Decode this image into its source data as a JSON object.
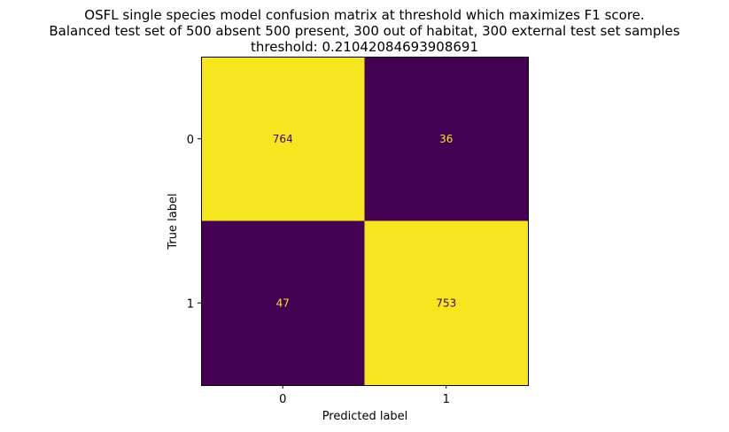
{
  "title_lines": [
    "OSFL single species model confusion matrix at threshold which maximizes F1 score.",
    "Balanced test set of 500 absent 500 present, 300 out of habitat, 300 external test set samples",
    "threshold: 0.21042084693908691"
  ],
  "chart_data": {
    "type": "heatmap",
    "title": "OSFL single species model confusion matrix at threshold which maximizes F1 score.\nBalanced test set of 500 absent 500 present, 300 out of habitat, 300 external test set samples\nthreshold: 0.21042084693908691",
    "xlabel": "Predicted label",
    "ylabel": "True label",
    "x_categories": [
      "0",
      "1"
    ],
    "y_categories": [
      "0",
      "1"
    ],
    "matrix": [
      [
        764,
        36
      ],
      [
        47,
        753
      ]
    ],
    "colormap": "viridis",
    "colors": {
      "high": "#f6e620",
      "low": "#440154",
      "text_on_high": "#440154",
      "text_on_low": "#f6e620"
    },
    "grid": false,
    "colorbar": false
  }
}
